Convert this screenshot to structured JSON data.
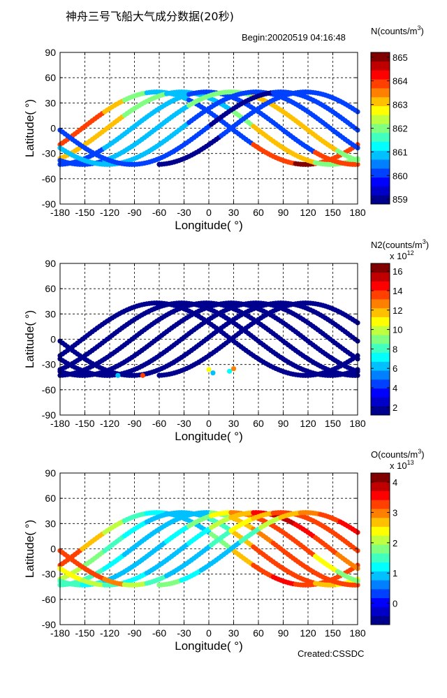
{
  "figure": {
    "title": "神舟三号飞船大气成分数据(20秒)",
    "begin_label": "Begin:20020519  04:16:48",
    "footer": "Created:CSSDC"
  },
  "colormap": [
    "#00008f",
    "#0000c8",
    "#0000ff",
    "#0040ff",
    "#0080ff",
    "#00c0ff",
    "#00ffff",
    "#40ffbf",
    "#80ff80",
    "#bfff40",
    "#ffff00",
    "#ffc000",
    "#ff8000",
    "#ff4000",
    "#ff0000",
    "#c00000",
    "#800000"
  ],
  "chart_data": [
    {
      "type": "scatter",
      "title": "",
      "xlabel": "Longitude( °)",
      "ylabel": "Latitude( °)",
      "xlim": [
        -180,
        180
      ],
      "ylim": [
        -90,
        90
      ],
      "xticks": [
        -180,
        -150,
        -120,
        -90,
        -60,
        -30,
        0,
        30,
        60,
        90,
        120,
        150,
        180
      ],
      "yticks": [
        -90,
        -60,
        -30,
        0,
        30,
        60,
        90
      ],
      "grid": true,
      "colorbar": {
        "label": "N(counts/m",
        "label_sup": "3",
        "label_close": ")",
        "multiplier": "",
        "multiplier_sup": "",
        "range": [
          858.8,
          865.2
        ],
        "ticks": [
          859,
          860,
          861,
          862,
          863,
          864,
          865
        ]
      },
      "tracks": [
        {
          "start_lon": -180,
          "end_lon": 180,
          "phase": 0,
          "offset": 0,
          "values": [
            864,
            864,
            863,
            862,
            861,
            861,
            860,
            860,
            860,
            864,
            864,
            865,
            864,
            864
          ]
        },
        {
          "start_lon": -180,
          "end_lon": 180,
          "phase": 30,
          "offset": 0,
          "values": [
            863,
            863,
            863,
            862,
            862,
            861,
            861,
            861,
            862,
            863,
            863,
            863,
            862,
            862
          ]
        },
        {
          "start_lon": -180,
          "end_lon": 180,
          "phase": 60,
          "offset": 0,
          "values": [
            860,
            860,
            861,
            861,
            861,
            861,
            860,
            860,
            860,
            860,
            860,
            860,
            864,
            864
          ]
        },
        {
          "start_lon": -180,
          "end_lon": 180,
          "phase": 90,
          "offset": 0,
          "values": [
            860,
            860,
            861,
            861,
            861,
            861,
            862,
            862,
            862,
            863,
            863,
            863,
            863,
            862
          ]
        },
        {
          "start_lon": -180,
          "end_lon": 180,
          "phase": 120,
          "offset": 0,
          "values": [
            861,
            861,
            861,
            861,
            861,
            861,
            860,
            860,
            860,
            860,
            860,
            860,
            860,
            860
          ]
        },
        {
          "start_lon": -180,
          "end_lon": 180,
          "phase": 150,
          "offset": 0,
          "values": [
            860,
            860,
            860,
            860,
            860,
            860,
            860,
            859,
            859,
            859,
            860,
            860,
            860,
            860
          ]
        },
        {
          "start_lon": -60,
          "end_lon": 180,
          "phase": 180,
          "offset": 0,
          "values": [
            859,
            859,
            859,
            860,
            860,
            860,
            860,
            860,
            860,
            860
          ]
        }
      ]
    },
    {
      "type": "scatter",
      "title": "",
      "xlabel": "Longitude( °)",
      "ylabel": "Latitude( °)",
      "xlim": [
        -180,
        180
      ],
      "ylim": [
        -90,
        90
      ],
      "xticks": [
        -180,
        -150,
        -120,
        -90,
        -60,
        -30,
        0,
        30,
        60,
        90,
        120,
        150,
        180
      ],
      "yticks": [
        -90,
        -60,
        -30,
        0,
        30,
        60,
        90
      ],
      "grid": true,
      "colorbar": {
        "label": "N2(counts/m",
        "label_sup": "3",
        "label_close": ")",
        "multiplier": "x 10",
        "multiplier_sup": "12",
        "range": [
          1.2,
          16.8
        ],
        "ticks": [
          2,
          4,
          6,
          8,
          10,
          12,
          14,
          16
        ]
      },
      "tracks": [
        {
          "start_lon": -180,
          "end_lon": 180,
          "phase": 0,
          "offset": 0,
          "values": [
            2,
            2,
            2,
            2,
            2,
            2,
            2,
            2,
            2,
            2,
            2,
            2,
            2,
            2
          ]
        },
        {
          "start_lon": -180,
          "end_lon": 180,
          "phase": 30,
          "offset": 0,
          "values": [
            2,
            2,
            2,
            2,
            2,
            2,
            2,
            2,
            2,
            2,
            2,
            2,
            2,
            2
          ]
        },
        {
          "start_lon": -180,
          "end_lon": 180,
          "phase": 60,
          "offset": 0,
          "values": [
            2,
            2,
            2,
            2,
            2,
            2,
            2,
            2,
            2,
            2,
            2,
            2,
            2,
            2
          ]
        },
        {
          "start_lon": -180,
          "end_lon": 180,
          "phase": 90,
          "offset": 0,
          "values": [
            2,
            2,
            2,
            2,
            2,
            2,
            2,
            2,
            2,
            2,
            2,
            2,
            2,
            2
          ]
        },
        {
          "start_lon": -180,
          "end_lon": 180,
          "phase": 120,
          "offset": 0,
          "values": [
            2,
            2,
            2,
            2,
            2,
            2,
            2,
            2,
            2,
            2,
            2,
            2,
            2,
            2
          ]
        },
        {
          "start_lon": -180,
          "end_lon": 180,
          "phase": 150,
          "offset": 0,
          "values": [
            2,
            2,
            2,
            2,
            2,
            2,
            2,
            2,
            2,
            2,
            2,
            2,
            2,
            2
          ]
        },
        {
          "start_lon": -60,
          "end_lon": 180,
          "phase": 180,
          "offset": 0,
          "values": [
            2,
            2,
            2,
            2,
            2,
            2,
            2,
            2,
            2,
            2
          ]
        }
      ],
      "spikes": [
        {
          "lon": -110,
          "lat": -43,
          "value": 6
        },
        {
          "lon": -80,
          "lat": -43,
          "value": 14
        },
        {
          "lon": 0,
          "lat": -36,
          "value": 11
        },
        {
          "lon": 5,
          "lat": -40,
          "value": 6
        },
        {
          "lon": 25,
          "lat": -38,
          "value": 7
        },
        {
          "lon": 30,
          "lat": -35,
          "value": 13
        }
      ]
    },
    {
      "type": "scatter",
      "title": "",
      "xlabel": "Longitude( °)",
      "ylabel": "Latitude( °)",
      "xlim": [
        -180,
        180
      ],
      "ylim": [
        -90,
        90
      ],
      "xticks": [
        -180,
        -150,
        -120,
        -90,
        -60,
        -30,
        0,
        30,
        60,
        90,
        120,
        150,
        180
      ],
      "yticks": [
        -90,
        -60,
        -30,
        0,
        30,
        60,
        90
      ],
      "grid": true,
      "colorbar": {
        "label": "O(counts/m",
        "label_sup": "3",
        "label_close": ")",
        "multiplier": "x 10",
        "multiplier_sup": "13",
        "range": [
          -0.7,
          4.3
        ],
        "ticks": [
          0,
          1,
          2,
          3,
          4
        ]
      },
      "tracks": [
        {
          "start_lon": -180,
          "end_lon": 180,
          "phase": 0,
          "offset": 0,
          "values": [
            3.2,
            2.8,
            2.0,
            1.6,
            1.2,
            1.0,
            0.9,
            1.8,
            2.8,
            3.3,
            3.5,
            3.4,
            3.3,
            3.2
          ]
        },
        {
          "start_lon": -180,
          "end_lon": 180,
          "phase": 30,
          "offset": 0,
          "values": [
            2.0,
            1.9,
            1.6,
            1.3,
            1.0,
            0.9,
            0.8,
            1.5,
            2.6,
            3.2,
            3.4,
            3.3,
            2.8,
            2.4
          ]
        },
        {
          "start_lon": -180,
          "end_lon": 180,
          "phase": 60,
          "offset": 0,
          "values": [
            1.6,
            1.4,
            1.2,
            1.0,
            0.9,
            0.8,
            1.0,
            1.8,
            2.6,
            3.0,
            3.3,
            3.2,
            3.3,
            3.4
          ]
        },
        {
          "start_lon": -180,
          "end_lon": 180,
          "phase": 90,
          "offset": 0,
          "values": [
            1.4,
            1.2,
            1.0,
            0.9,
            0.8,
            1.2,
            1.8,
            2.4,
            3.1,
            3.3,
            3.4,
            3.3,
            2.5,
            1.7
          ]
        },
        {
          "start_lon": -180,
          "end_lon": 180,
          "phase": 120,
          "offset": 0,
          "values": [
            2.4,
            2.0,
            1.6,
            1.2,
            0.9,
            0.9,
            1.2,
            2.0,
            2.8,
            3.6,
            3.9,
            3.5,
            3.2,
            3.0
          ]
        },
        {
          "start_lon": -180,
          "end_lon": 180,
          "phase": 150,
          "offset": 0,
          "values": [
            3.4,
            3.4,
            2.9,
            2.2,
            1.5,
            1.0,
            0.9,
            1.5,
            2.3,
            2.8,
            3.2,
            3.3,
            3.4,
            3.4
          ]
        },
        {
          "start_lon": -60,
          "end_lon": 180,
          "phase": 180,
          "offset": 0,
          "values": [
            1.8,
            1.2,
            0.9,
            1.0,
            1.4,
            2.2,
            2.8,
            3.1,
            3.4,
            3.5
          ]
        }
      ]
    }
  ]
}
